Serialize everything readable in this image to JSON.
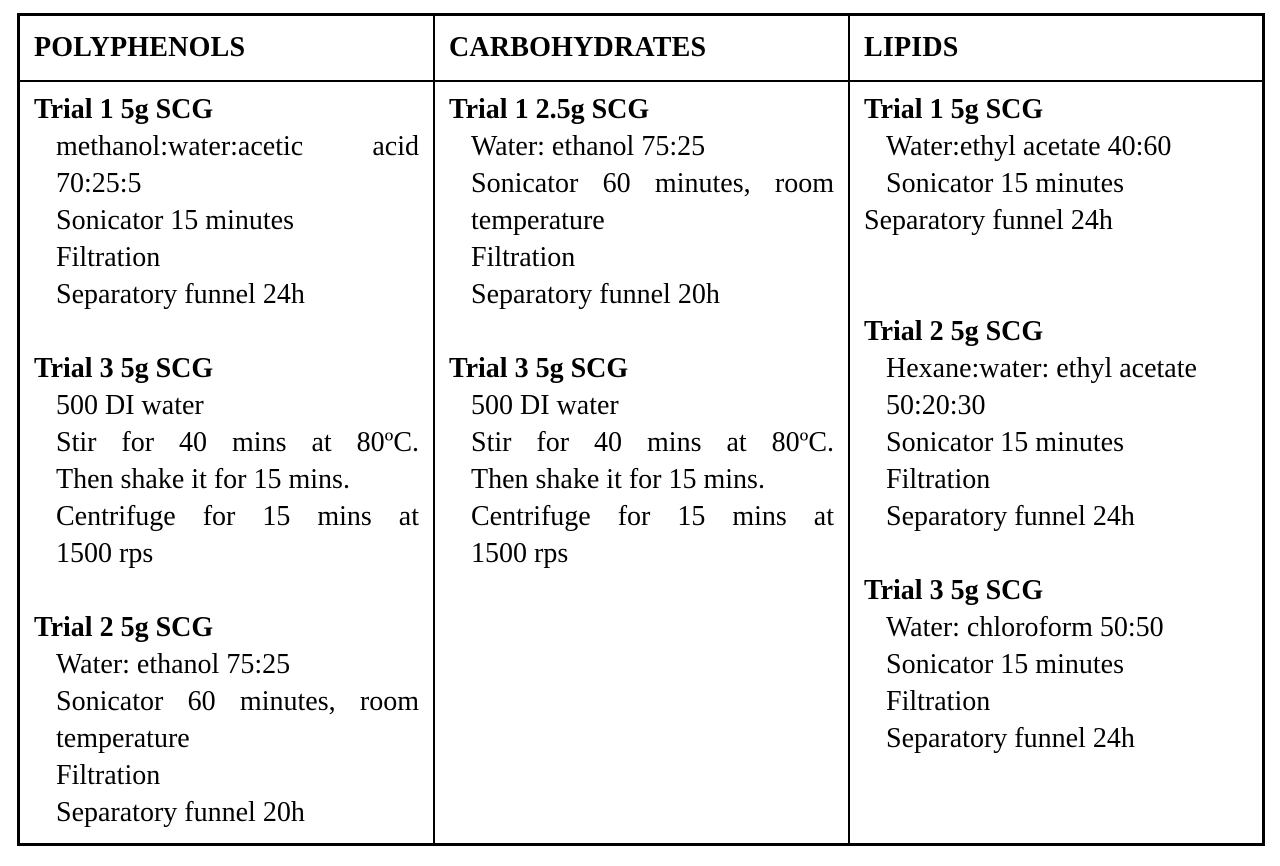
{
  "theme": {
    "background_color": "#ffffff",
    "border_color": "#000000",
    "text_color": "#000000"
  },
  "table": {
    "columns": [
      {
        "header": "POLYPHENOLS",
        "blocks": [
          {
            "title": "Trial 1 5g SCG",
            "lines": [
              "methanol:water:acetic acid",
              "70:25:5",
              "Sonicator 15 minutes",
              "Filtration",
              "Separatory funnel 24h"
            ]
          },
          {
            "title": "Trial 3 5g SCG",
            "lines": [
              "500 DI water",
              "Stir for 40 mins at 80ºC.",
              "Then shake it for 15 mins.",
              "Centrifuge for 15 mins at",
              "1500 rps"
            ]
          },
          {
            "title": "Trial 2 5g SCG",
            "lines": [
              "Water: ethanol 75:25",
              "Sonicator 60 minutes, room",
              "temperature",
              "Filtration",
              "Separatory funnel 20h"
            ]
          }
        ]
      },
      {
        "header": "CARBOHYDRATES",
        "blocks": [
          {
            "title": "Trial 1 2.5g SCG",
            "lines": [
              "Water: ethanol 75:25",
              "Sonicator 60 minutes, room",
              "temperature",
              "Filtration",
              "Separatory funnel 20h"
            ]
          },
          {
            "title": "Trial 3 5g SCG",
            "lines": [
              "500 DI water",
              "Stir for 40 mins at 80ºC.",
              "Then shake it for 15 mins.",
              "Centrifuge for 15 mins at",
              "1500 rps"
            ]
          }
        ]
      },
      {
        "header": "LIPIDS",
        "blocks": [
          {
            "title": "Trial 1 5g SCG",
            "lines": [
              "Water:ethyl acetate 40:60",
              "Sonicator 15 minutes",
              "Separatory funnel 24h"
            ]
          },
          {
            "title": "Trial 2 5g SCG",
            "lines": [
              "Hexane:water: ethyl acetate",
              "50:20:30",
              "Sonicator 15 minutes",
              "Filtration",
              "Separatory funnel 24h"
            ]
          },
          {
            "title": "Trial 3 5g SCG",
            "lines": [
              "Water: chloroform 50:50",
              "Sonicator 15 minutes",
              "Filtration",
              "Separatory funnel 24h"
            ]
          }
        ]
      }
    ]
  }
}
